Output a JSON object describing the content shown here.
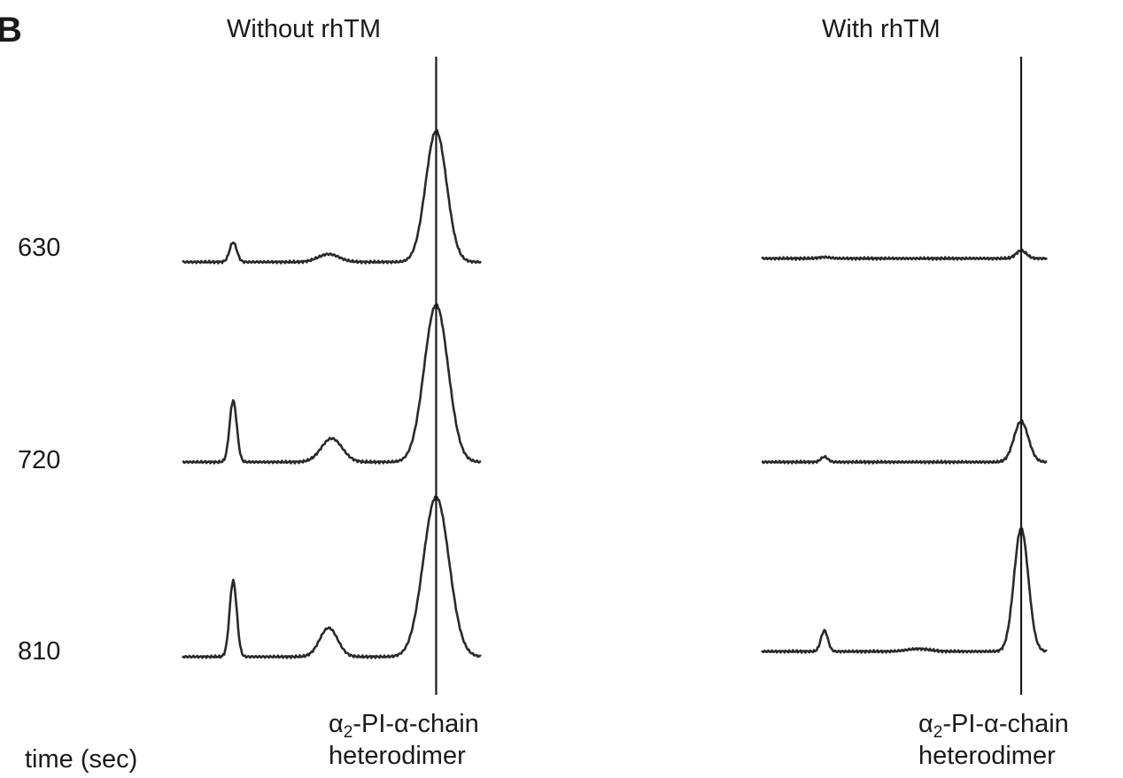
{
  "panel_label": "B",
  "chart_data": [
    {
      "type": "line",
      "title": "Without rhTM",
      "xlabel": "",
      "ylabel": "time (sec)",
      "series": [
        {
          "name": "630",
          "peaks": [
            {
              "x": 0.17,
              "h": 0.15,
              "w": 0.012
            },
            {
              "x": 0.49,
              "h": 0.06,
              "w": 0.035
            },
            {
              "x": 0.85,
              "h": 1.0,
              "w": 0.035
            }
          ]
        },
        {
          "name": "720",
          "peaks": [
            {
              "x": 0.17,
              "h": 0.47,
              "w": 0.012
            },
            {
              "x": 0.5,
              "h": 0.18,
              "w": 0.035
            },
            {
              "x": 0.85,
              "h": 1.2,
              "w": 0.04
            }
          ]
        },
        {
          "name": "810",
          "peaks": [
            {
              "x": 0.17,
              "h": 0.58,
              "w": 0.012
            },
            {
              "x": 0.49,
              "h": 0.22,
              "w": 0.03
            },
            {
              "x": 0.85,
              "h": 1.22,
              "w": 0.043
            }
          ]
        }
      ],
      "marker": {
        "label_main": "α",
        "label_sub": "2",
        "label_rest": "-PI-α-chain",
        "label_line2": "heterodimer",
        "x": 0.85
      }
    },
    {
      "type": "line",
      "title": "With rhTM",
      "xlabel": "",
      "ylabel": "time (sec)",
      "series": [
        {
          "name": "630",
          "peaks": [
            {
              "x": 0.22,
              "h": 0.01,
              "w": 0.02
            },
            {
              "x": 0.91,
              "h": 0.06,
              "w": 0.018
            }
          ]
        },
        {
          "name": "720",
          "peaks": [
            {
              "x": 0.22,
              "h": 0.04,
              "w": 0.012
            },
            {
              "x": 0.91,
              "h": 0.31,
              "w": 0.025
            }
          ]
        },
        {
          "name": "810",
          "peaks": [
            {
              "x": 0.22,
              "h": 0.16,
              "w": 0.012
            },
            {
              "x": 0.55,
              "h": 0.02,
              "w": 0.04
            },
            {
              "x": 0.91,
              "h": 0.94,
              "w": 0.025
            }
          ]
        }
      ],
      "marker": {
        "label_main": "α",
        "label_sub": "2",
        "label_rest": "-PI-α-chain",
        "label_line2": "heterodimer",
        "x": 0.91
      }
    }
  ],
  "time_labels": [
    "630",
    "720",
    "810"
  ],
  "axis_label": "time (sec)"
}
